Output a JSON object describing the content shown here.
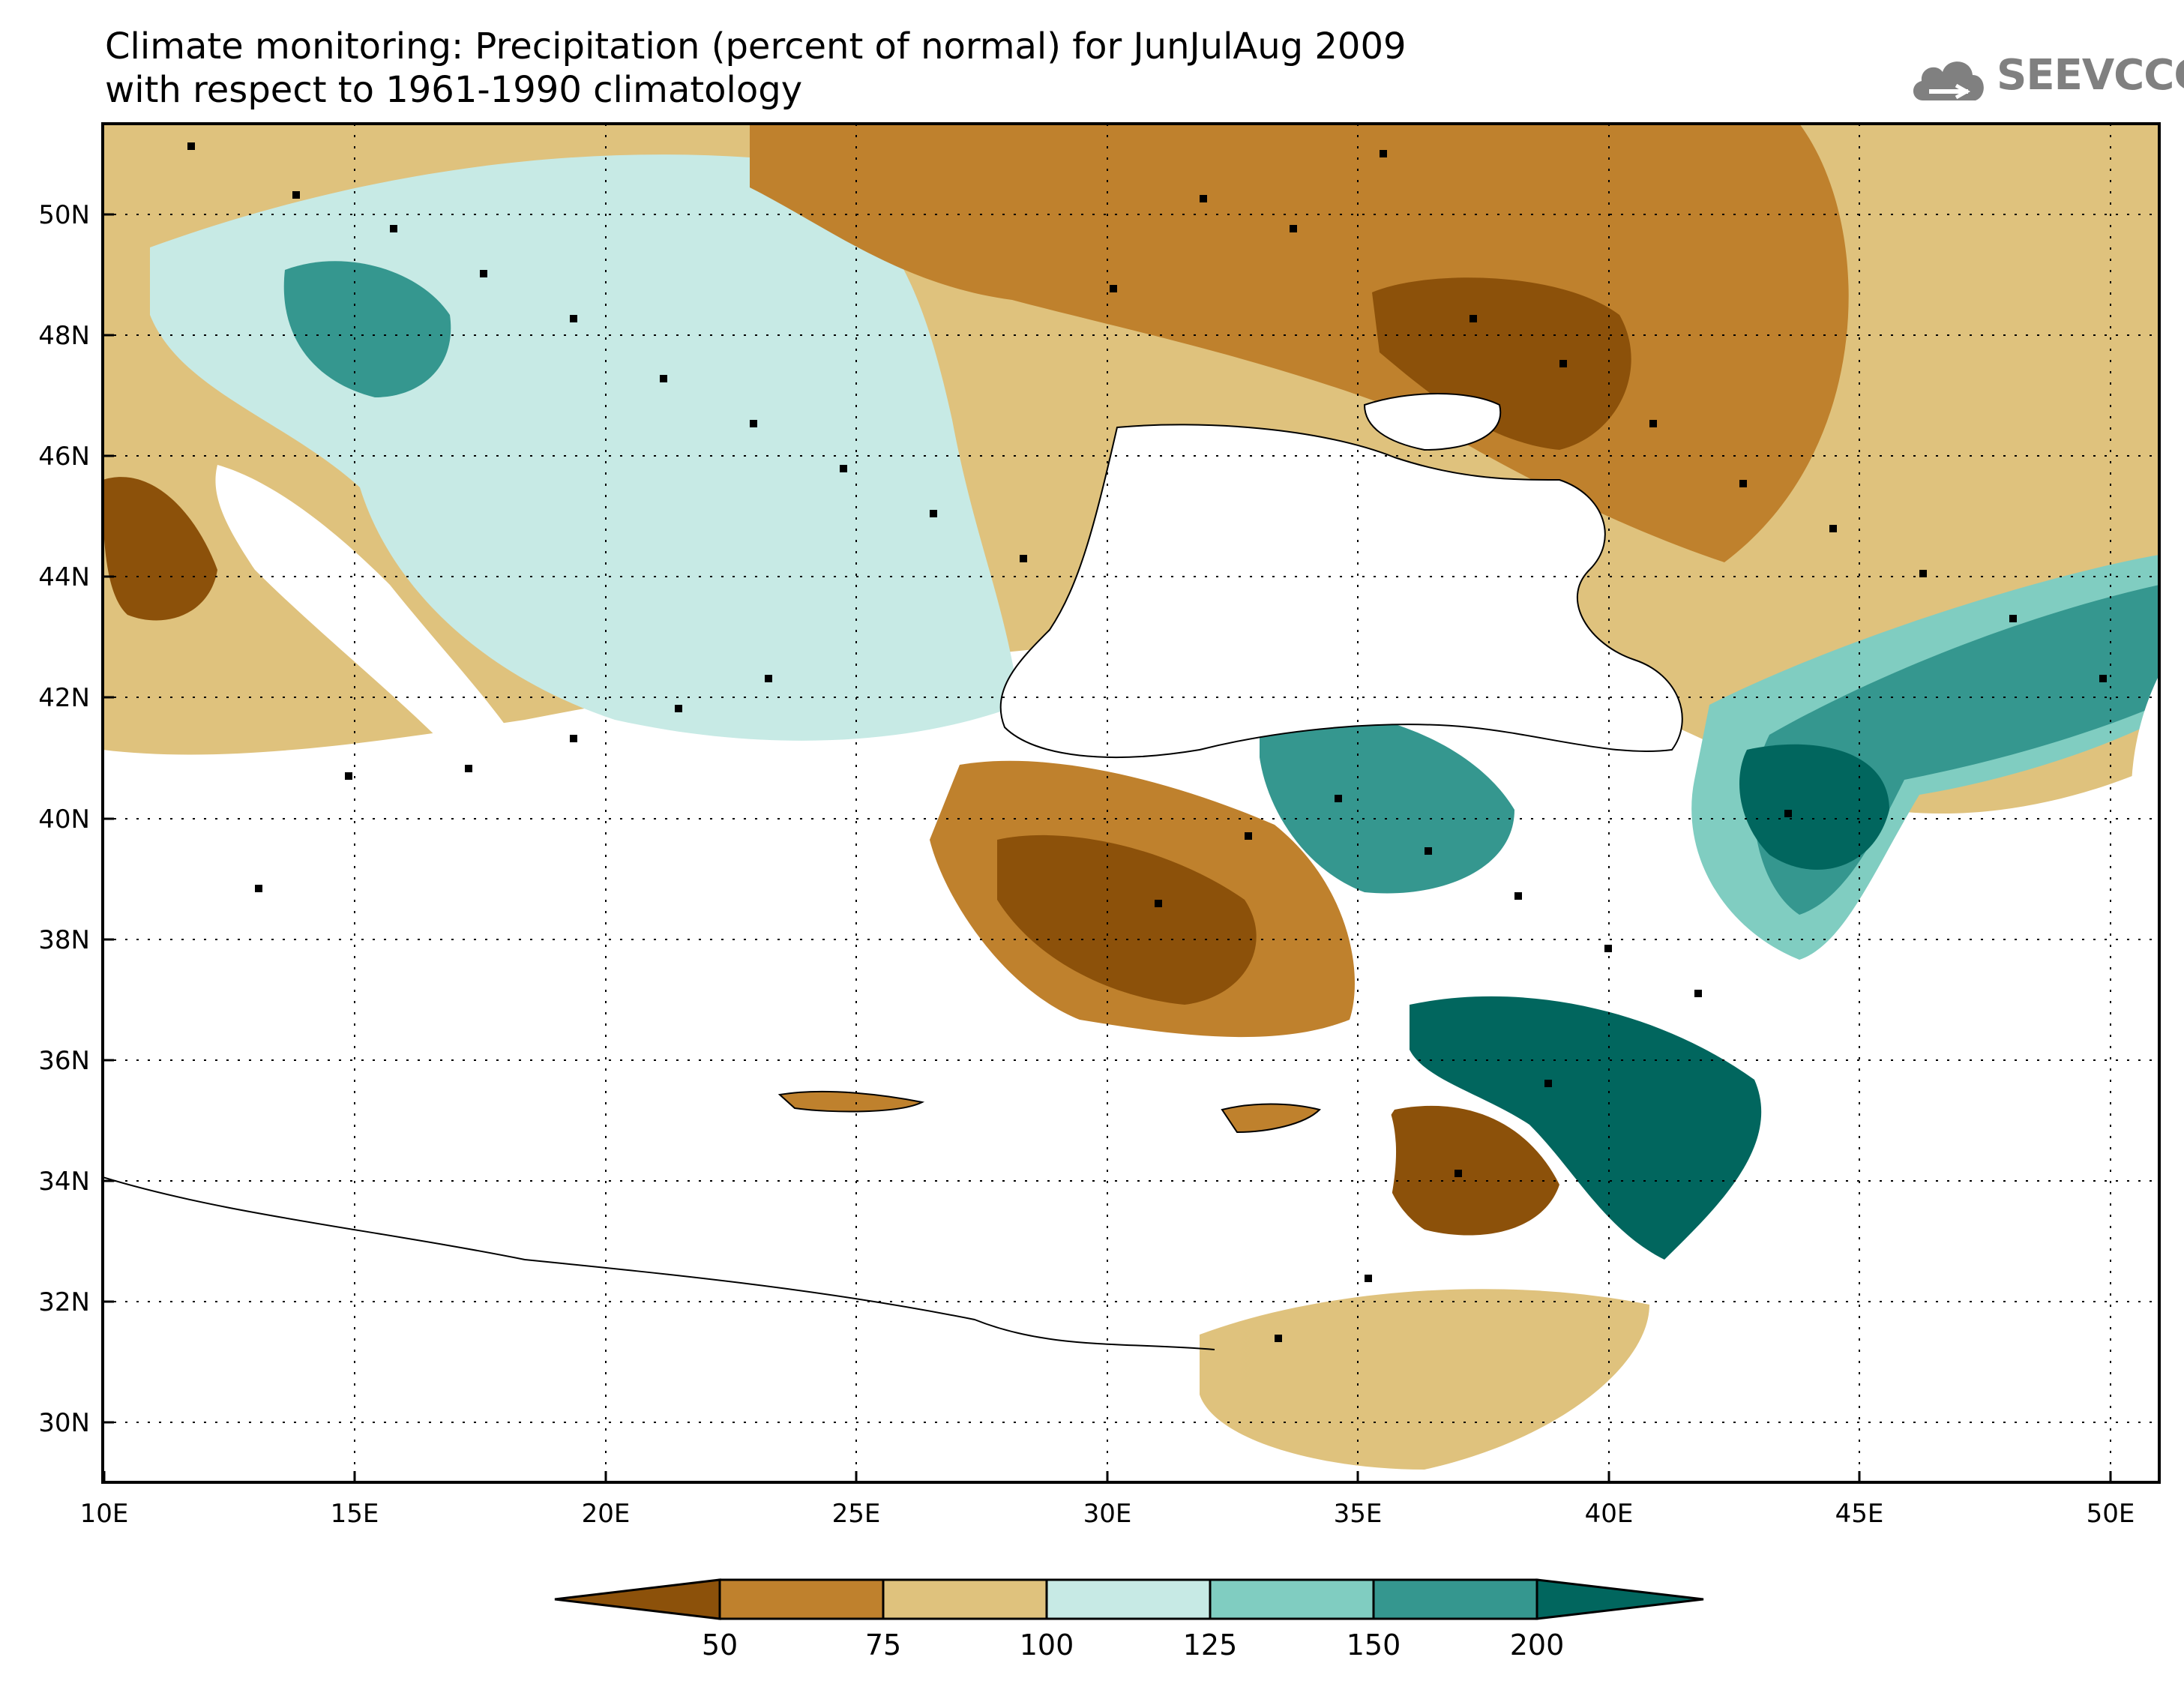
{
  "title": {
    "line1": "Climate monitoring: Precipitation (percent of normal) for JunJulAug 2009",
    "line2": "with respect to 1961-1990 climatology"
  },
  "logo": {
    "text": "SEEVCCC",
    "icon": "cloud-icon",
    "color": "#808080"
  },
  "map": {
    "lon_range": [
      10,
      51
    ],
    "lat_range": [
      29,
      51.5
    ],
    "lon_ticks": [
      "10E",
      "15E",
      "20E",
      "25E",
      "30E",
      "35E",
      "40E",
      "45E",
      "50E"
    ],
    "lat_ticks": [
      "30N",
      "32N",
      "34N",
      "36N",
      "38N",
      "40N",
      "42N",
      "44N",
      "46N",
      "48N",
      "50N"
    ],
    "gridlines": "dotted"
  },
  "colorbar": {
    "levels": [
      "50",
      "75",
      "100",
      "125",
      "150",
      "200"
    ],
    "colors": [
      "#8c510a",
      "#bf812d",
      "#dfc27d",
      "#c7eae5",
      "#80cdc1",
      "#35978f",
      "#01665e"
    ]
  }
}
